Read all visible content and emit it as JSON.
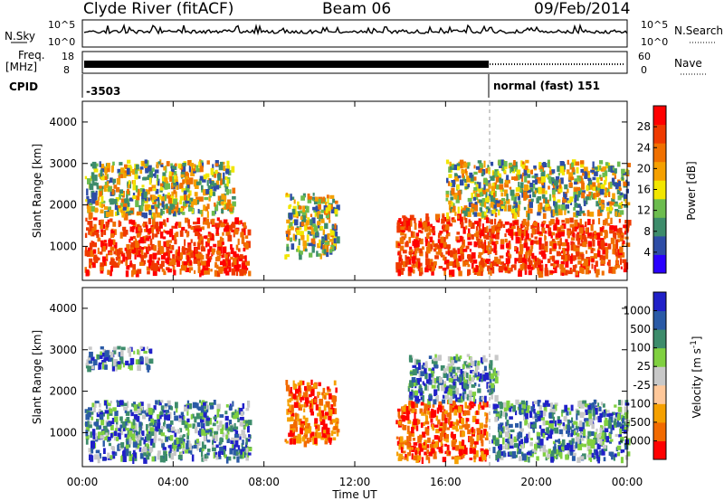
{
  "header": {
    "station": "Clyde River (fitACF)",
    "beam": "Beam 06",
    "date": "09/Feb/2014"
  },
  "side_labels": {
    "nsky": "N.Sky",
    "freq_line1": "Freq.",
    "freq_line2": "[MHz]",
    "cpid": "CPID",
    "nsearch": "N.Search",
    "nave": "Nave"
  },
  "cpid_values": {
    "left": "-3503",
    "right": "normal (fast) 151"
  },
  "nsky_ticks": [
    "10^5",
    "10^0"
  ],
  "nsearch_ticks": [
    "10^5",
    "10^0"
  ],
  "freq_ticks": [
    "18",
    "8"
  ],
  "nave_ticks": [
    "60",
    "0"
  ],
  "x_ticks": [
    "00:00",
    "04:00",
    "08:00",
    "12:00",
    "16:00",
    "20:00",
    "00:00"
  ],
  "x_label": "Time UT",
  "colors": {
    "power_scale": [
      "#2a00ff",
      "#2e4da6",
      "#3d8c6b",
      "#6cbc4e",
      "#f2e600",
      "#f5a000",
      "#f07000",
      "#ef3a00",
      "#ff0000"
    ],
    "velocity_scale": [
      "#ff0000",
      "#f26a00",
      "#f5a000",
      "#ffc89a",
      "#c8c8c8",
      "#80d040",
      "#3d8c6b",
      "#2a5aa6",
      "#2020c8"
    ]
  },
  "chart_data": [
    {
      "type": "heatmap",
      "title": "",
      "xlabel": "",
      "ylabel": "Slant Range [km]",
      "xlim": [
        "00:00",
        "24:00"
      ],
      "ylim": [
        180,
        4500
      ],
      "y_ticks": [
        "1000",
        "2000",
        "3000",
        "4000"
      ],
      "colorbar": {
        "label": "Power [dB]",
        "ticks": [
          "4",
          "8",
          "12",
          "16",
          "20",
          "24",
          "28"
        ],
        "range": [
          0,
          30
        ]
      },
      "echo_regions": [
        {
          "t_start": 0.1,
          "t_end": 7.3,
          "r_low": 400,
          "r_high": 1700,
          "dominant": "28+ dB"
        },
        {
          "t_start": 0.1,
          "t_end": 6.6,
          "r_low": 1800,
          "r_high": 3100,
          "dominant": "8-20 dB"
        },
        {
          "t_start": 8.9,
          "t_end": 11.2,
          "r_low": 800,
          "r_high": 2300,
          "dominant": "20-28 dB"
        },
        {
          "t_start": 13.8,
          "t_end": 18.0,
          "r_low": 400,
          "r_high": 1800,
          "dominant": "28+ dB"
        },
        {
          "t_start": 18.0,
          "t_end": 24.0,
          "r_low": 400,
          "r_high": 1700,
          "dominant": "28+ dB"
        },
        {
          "t_start": 16.0,
          "t_end": 24.0,
          "r_low": 1800,
          "r_high": 3100,
          "dominant": "8-24 dB"
        }
      ]
    },
    {
      "type": "heatmap",
      "title": "",
      "xlabel": "Time UT",
      "ylabel": "Slant Range [km]",
      "xlim": [
        "00:00",
        "24:00"
      ],
      "ylim": [
        180,
        4500
      ],
      "y_ticks": [
        "1000",
        "2000",
        "3000",
        "4000"
      ],
      "colorbar": {
        "label": "Velocity [m s^-1]",
        "ticks": [
          "-1000",
          "-500",
          "-100",
          "-25",
          "25",
          "100",
          "500",
          "1000"
        ],
        "range": [
          -1000,
          1000
        ]
      },
      "echo_regions": [
        {
          "t_start": 0.1,
          "t_end": 7.3,
          "r_low": 400,
          "r_high": 1800,
          "dominant": "25 to 500 m/s"
        },
        {
          "t_start": 0.1,
          "t_end": 3.0,
          "r_low": 2600,
          "r_high": 3100,
          "dominant": "-25 to 25 m/s"
        },
        {
          "t_start": 8.9,
          "t_end": 11.2,
          "r_low": 800,
          "r_high": 2300,
          "dominant": "-100 to -1000 m/s"
        },
        {
          "t_start": 13.8,
          "t_end": 17.8,
          "r_low": 400,
          "r_high": 1800,
          "dominant": "-100 to -500 m/s"
        },
        {
          "t_start": 14.3,
          "t_end": 18.2,
          "r_low": 1800,
          "r_high": 2900,
          "dominant": "500 to 1000 m/s"
        },
        {
          "t_start": 18.0,
          "t_end": 24.0,
          "r_low": 400,
          "r_high": 1800,
          "dominant": "100 to 500 m/s"
        }
      ]
    }
  ]
}
